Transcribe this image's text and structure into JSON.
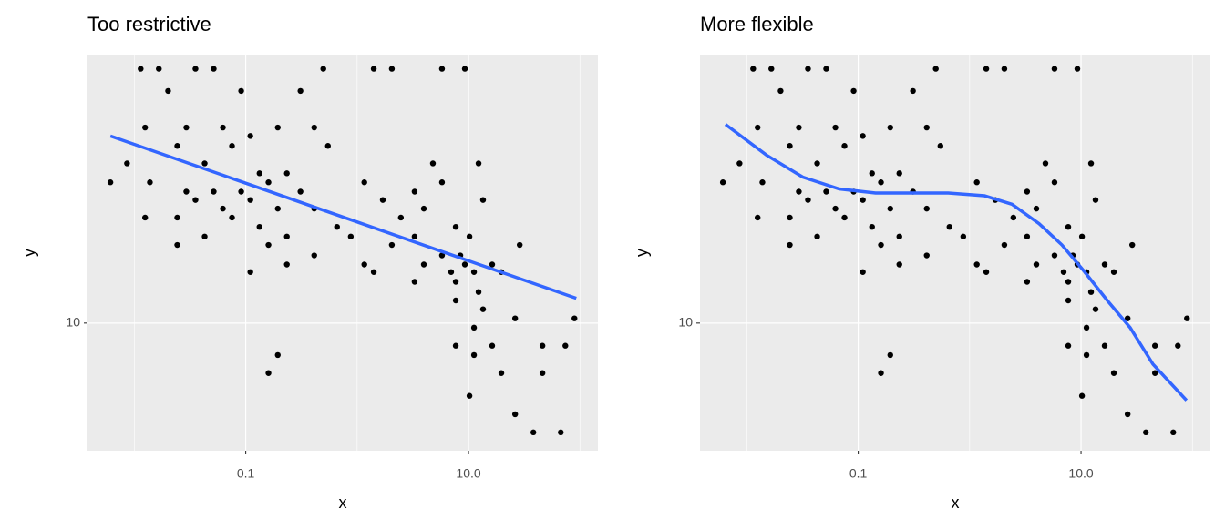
{
  "chart_data": [
    {
      "type": "scatter",
      "title": "Too restrictive",
      "x_label": "x",
      "y_label": "y",
      "log_x": true,
      "log_y": true,
      "grid": true,
      "xlim": [
        0.0038,
        145
      ],
      "ylim": [
        5.84,
        31.0
      ],
      "xticks": [
        0.1,
        {
          "value": 10,
          "label": "10.0"
        }
      ],
      "xminor": [
        0.01,
        1,
        100
      ],
      "yticks": [
        10
      ],
      "series": [
        {
          "kind": "point",
          "color": "#000000",
          "x": [
            0.0061,
            0.0114,
            0.0166,
            0.0354,
            0.0516,
            0.497,
            1.41,
            2.05,
            5.78,
            9.27,
            0.0201,
            0.091,
            0.31,
            0.0125,
            0.0293,
            0.0624,
            0.11,
            0.194,
            0.412,
            0.0243,
            0.0753,
            0.547,
            0.0086,
            0.0428,
            0.133,
            0.234,
            4.79,
            12.3,
            0.0138,
            0.0293,
            0.0516,
            0.091,
            0.16,
            0.31,
            1.16,
            3.28,
            5.78,
            0.0354,
            0.0624,
            0.11,
            0.194,
            0.412,
            1.7,
            3.97,
            13.5,
            0.0125,
            0.0243,
            0.0753,
            0.133,
            0.66,
            2.47,
            7.68,
            0.0428,
            0.234,
            0.877,
            3.28,
            10.2,
            0.0243,
            0.16,
            2.05,
            28.8,
            0.412,
            5.78,
            8.44,
            0.234,
            1.16,
            3.97,
            9.27,
            16.3,
            0.11,
            1.41,
            6.98,
            11.2,
            19.7,
            3.28,
            7.68,
            12.3,
            7.68,
            13.5,
            26.2,
            89.3,
            11.2,
            16.3,
            7.68,
            46.1,
            74.0,
            0.194,
            11.2,
            19.7,
            0.16,
            46.1,
            10.2,
            26.2,
            38.2,
            67.3
          ],
          "values": [
            18.1,
            29.2,
            29.2,
            29.2,
            29.2,
            29.2,
            29.2,
            29.2,
            29.2,
            29.2,
            26.6,
            26.6,
            26.6,
            22.8,
            22.8,
            22.8,
            22.0,
            22.8,
            22.8,
            21.1,
            21.1,
            21.1,
            19.6,
            19.6,
            18.8,
            18.8,
            19.6,
            19.6,
            18.1,
            17.4,
            17.4,
            17.4,
            18.1,
            17.4,
            18.1,
            17.4,
            18.1,
            16.8,
            16.2,
            16.8,
            16.2,
            16.2,
            16.8,
            16.2,
            16.8,
            15.6,
            15.6,
            15.6,
            15.0,
            15.0,
            15.6,
            15.0,
            14.4,
            14.4,
            14.4,
            14.4,
            14.4,
            13.9,
            13.9,
            13.9,
            13.9,
            13.3,
            13.3,
            13.3,
            12.8,
            12.8,
            12.8,
            12.8,
            12.8,
            12.4,
            12.4,
            12.4,
            12.4,
            12.4,
            11.9,
            11.9,
            11.4,
            11.0,
            10.6,
            10.2,
            10.2,
            9.81,
            9.09,
            9.09,
            9.09,
            9.09,
            8.74,
            8.74,
            8.1,
            8.1,
            8.1,
            7.36,
            6.81,
            6.31,
            6.31
          ]
        },
        {
          "kind": "line",
          "color": "#3366FF",
          "x": [
            0.0061,
            92.7
          ],
          "values": [
            22.0,
            11.1
          ]
        }
      ]
    },
    {
      "type": "scatter",
      "title": "More flexible",
      "x_label": "x",
      "y_label": "y",
      "log_x": true,
      "log_y": true,
      "grid": true,
      "xlim": [
        0.0038,
        145
      ],
      "ylim": [
        5.84,
        31.0
      ],
      "xticks": [
        0.1,
        {
          "value": 10,
          "label": "10.0"
        }
      ],
      "xminor": [
        0.01,
        1,
        100
      ],
      "yticks": [
        10
      ],
      "series": [
        {
          "kind": "point",
          "color": "#000000",
          "x": [
            0.0061,
            0.0114,
            0.0166,
            0.0354,
            0.0516,
            0.497,
            1.41,
            2.05,
            5.78,
            9.27,
            0.0201,
            0.091,
            0.31,
            0.0125,
            0.0293,
            0.0624,
            0.11,
            0.194,
            0.412,
            0.0243,
            0.0753,
            0.547,
            0.0086,
            0.0428,
            0.133,
            0.234,
            4.79,
            12.3,
            0.0138,
            0.0293,
            0.0516,
            0.091,
            0.16,
            0.31,
            1.16,
            3.28,
            5.78,
            0.0354,
            0.0624,
            0.11,
            0.194,
            0.412,
            1.7,
            3.97,
            13.5,
            0.0125,
            0.0243,
            0.0753,
            0.133,
            0.66,
            2.47,
            7.68,
            0.0428,
            0.234,
            0.877,
            3.28,
            10.2,
            0.0243,
            0.16,
            2.05,
            28.8,
            0.412,
            5.78,
            8.44,
            0.234,
            1.16,
            3.97,
            9.27,
            16.3,
            0.11,
            1.41,
            6.98,
            11.2,
            19.7,
            3.28,
            7.68,
            12.3,
            7.68,
            13.5,
            26.2,
            89.3,
            11.2,
            16.3,
            7.68,
            46.1,
            74.0,
            0.194,
            11.2,
            19.7,
            0.16,
            46.1,
            10.2,
            26.2,
            38.2,
            67.3
          ],
          "values": [
            18.1,
            29.2,
            29.2,
            29.2,
            29.2,
            29.2,
            29.2,
            29.2,
            29.2,
            29.2,
            26.6,
            26.6,
            26.6,
            22.8,
            22.8,
            22.8,
            22.0,
            22.8,
            22.8,
            21.1,
            21.1,
            21.1,
            19.6,
            19.6,
            18.8,
            18.8,
            19.6,
            19.6,
            18.1,
            17.4,
            17.4,
            17.4,
            18.1,
            17.4,
            18.1,
            17.4,
            18.1,
            16.8,
            16.2,
            16.8,
            16.2,
            16.2,
            16.8,
            16.2,
            16.8,
            15.6,
            15.6,
            15.6,
            15.0,
            15.0,
            15.6,
            15.0,
            14.4,
            14.4,
            14.4,
            14.4,
            14.4,
            13.9,
            13.9,
            13.9,
            13.9,
            13.3,
            13.3,
            13.3,
            12.8,
            12.8,
            12.8,
            12.8,
            12.8,
            12.4,
            12.4,
            12.4,
            12.4,
            12.4,
            11.9,
            11.9,
            11.4,
            11.0,
            10.6,
            10.2,
            10.2,
            9.81,
            9.09,
            9.09,
            9.09,
            9.09,
            8.74,
            8.74,
            8.1,
            8.1,
            8.1,
            7.36,
            6.81,
            6.31,
            6.31
          ]
        },
        {
          "kind": "line",
          "color": "#3366FF",
          "x": [
            0.00643,
            0.015,
            0.0318,
            0.0674,
            0.143,
            0.303,
            0.643,
            1.36,
            2.4,
            4.21,
            6.74,
            10.8,
            17.2,
            27.6,
            44.2,
            88.5
          ],
          "values": [
            23.1,
            20.3,
            18.5,
            17.6,
            17.3,
            17.3,
            17.3,
            17.1,
            16.5,
            15.2,
            13.9,
            12.4,
            11.0,
            9.81,
            8.41,
            7.22
          ]
        }
      ]
    }
  ]
}
